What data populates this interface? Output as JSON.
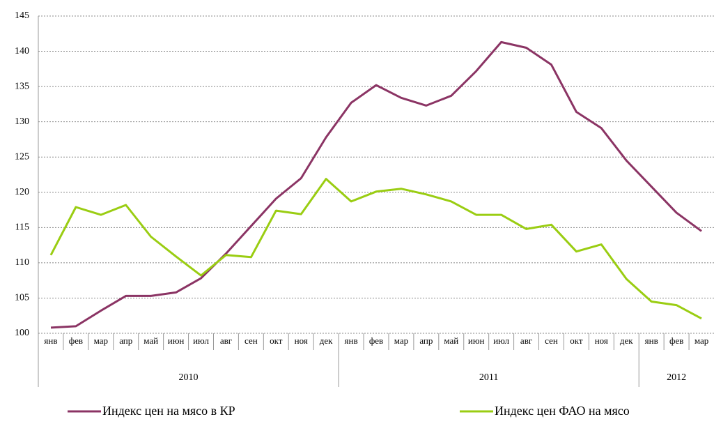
{
  "chart_data": {
    "type": "line",
    "categories": [
      "янв",
      "фев",
      "мар",
      "апр",
      "май",
      "июн",
      "июл",
      "авг",
      "сен",
      "окт",
      "ноя",
      "дек",
      "янв",
      "фев",
      "мар",
      "апр",
      "май",
      "июн",
      "июл",
      "авг",
      "сен",
      "окт",
      "ноя",
      "дек",
      "янв",
      "фев",
      "мар"
    ],
    "x_groups": [
      {
        "label": "2010",
        "count": 12
      },
      {
        "label": "2011",
        "count": 12
      },
      {
        "label": "2012",
        "count": 3
      }
    ],
    "series": [
      {
        "name": "Индекс цен на мясо в КР",
        "color": "#8b3464",
        "values": [
          100.8,
          101.0,
          103.2,
          105.3,
          105.3,
          105.8,
          107.8,
          111.3,
          115.2,
          119.1,
          122.0,
          127.8,
          132.7,
          135.2,
          133.4,
          132.3,
          133.7,
          137.2,
          141.3,
          140.5,
          138.1,
          131.4,
          129.1,
          124.5,
          120.8,
          117.1,
          114.5
        ]
      },
      {
        "name": "Индекс цен ФАО на мясо",
        "color": "#9acd12",
        "values": [
          111.1,
          117.9,
          116.8,
          118.2,
          113.7,
          110.9,
          108.2,
          111.1,
          110.8,
          117.4,
          116.9,
          121.9,
          118.7,
          120.1,
          120.5,
          119.7,
          118.7,
          116.8,
          116.8,
          114.8,
          115.4,
          111.6,
          112.6,
          107.7,
          104.5,
          104.0,
          102.1
        ]
      }
    ],
    "ylim": [
      100,
      145
    ],
    "yticks": [
      100,
      105,
      110,
      115,
      120,
      125,
      130,
      135,
      140,
      145
    ],
    "grid": true
  }
}
